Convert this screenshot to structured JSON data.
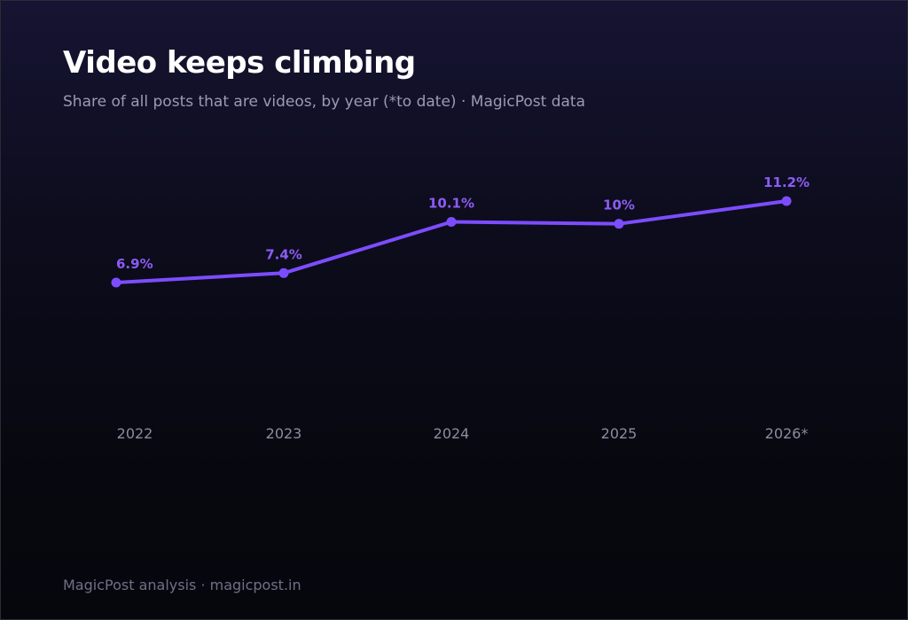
{
  "header": {
    "title": "Video keeps climbing",
    "subtitle": "Share of all posts that are videos, by year (*to date) · MagicPost data"
  },
  "footer": {
    "source": "MagicPost analysis · magicpost.in"
  },
  "colors": {
    "accent": "#7c4dff",
    "label": "#8c5cf6",
    "background": "#07080f"
  },
  "chart_data": {
    "type": "line",
    "title": "Video keeps climbing",
    "subtitle": "Share of all posts that are videos, by year (*to date) · MagicPost data",
    "categories": [
      "2022",
      "2023",
      "2024",
      "2025",
      "2026*"
    ],
    "values": [
      6.9,
      7.4,
      10.1,
      10.0,
      11.2
    ],
    "data_labels": [
      "6.9%",
      "7.4%",
      "10.1%",
      "10%",
      "11.2%"
    ],
    "unit": "%",
    "ylim": [
      0,
      14
    ],
    "grid": false,
    "legend": "none"
  }
}
